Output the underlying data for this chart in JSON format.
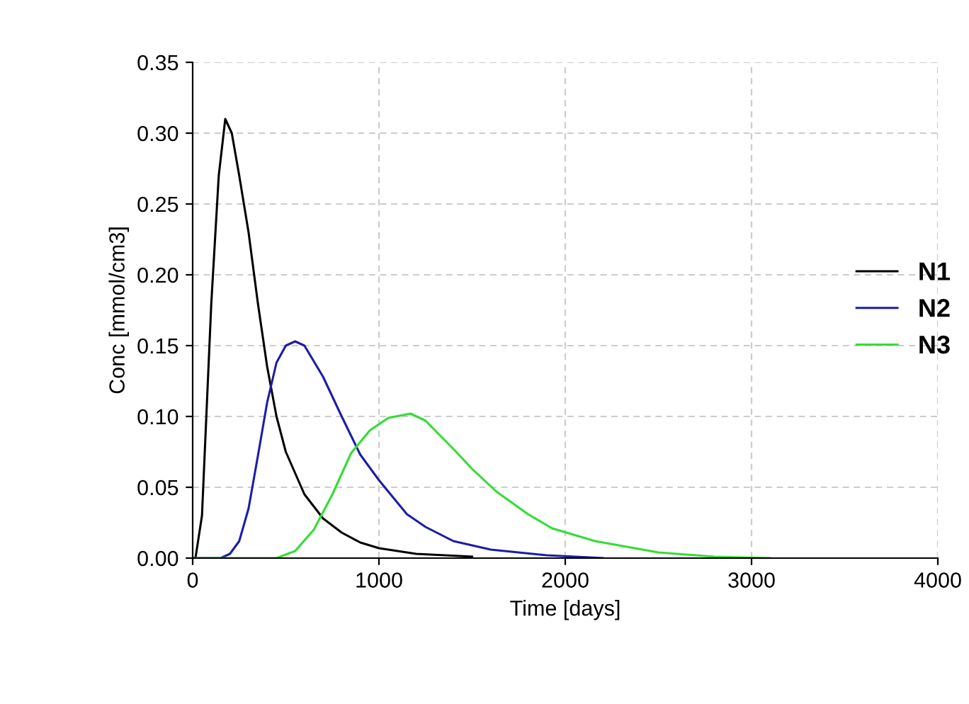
{
  "chart_data": {
    "type": "line",
    "xlabel": "Time [days]",
    "ylabel": "Conc [mmol/cm3]",
    "xlim": [
      0,
      4000
    ],
    "xticks": [
      0,
      1000,
      2000,
      3000,
      4000
    ],
    "ylim": [
      0,
      0.35
    ],
    "yticks": [
      {
        "value": 0,
        "label": "0.00"
      },
      {
        "value": 0.05,
        "label": "0.05"
      },
      {
        "value": 0.1,
        "label": "0.10"
      },
      {
        "value": 0.15,
        "label": "0.15"
      },
      {
        "value": 0.2,
        "label": "0.20"
      },
      {
        "value": 0.25,
        "label": "0.25"
      },
      {
        "value": 0.3,
        "label": "0.30"
      },
      {
        "value": 0.35,
        "label": "0.35"
      }
    ],
    "grid": true,
    "legend": "right",
    "marker": "none",
    "line_style": "solid",
    "series": [
      {
        "name": "N1",
        "color": "#000000",
        "x": [
          0,
          15,
          50,
          100,
          140,
          175,
          210,
          250,
          300,
          350,
          400,
          450,
          500,
          560,
          600,
          700,
          800,
          900,
          1000,
          1200,
          1500
        ],
        "values": [
          0,
          0,
          0.03,
          0.18,
          0.27,
          0.31,
          0.3,
          0.27,
          0.23,
          0.18,
          0.135,
          0.1,
          0.075,
          0.057,
          0.045,
          0.028,
          0.018,
          0.011,
          0.007,
          0.003,
          0.001
        ]
      },
      {
        "name": "N2",
        "color": "#1c1ca8",
        "x": [
          0,
          150,
          200,
          250,
          300,
          350,
          400,
          450,
          500,
          550,
          600,
          700,
          800,
          900,
          1000,
          1150,
          1250,
          1400,
          1600,
          1900,
          2200
        ],
        "values": [
          0,
          0,
          0.003,
          0.012,
          0.035,
          0.072,
          0.11,
          0.138,
          0.15,
          0.153,
          0.15,
          0.128,
          0.1,
          0.073,
          0.055,
          0.031,
          0.022,
          0.012,
          0.006,
          0.002,
          0
        ]
      },
      {
        "name": "N3",
        "color": "#33dd33",
        "x": [
          0,
          450,
          550,
          650,
          750,
          850,
          950,
          1050,
          1170,
          1250,
          1400,
          1500,
          1630,
          1800,
          1930,
          2160,
          2500,
          2800,
          3100
        ],
        "values": [
          0,
          0,
          0.005,
          0.02,
          0.045,
          0.074,
          0.09,
          0.099,
          0.102,
          0.097,
          0.077,
          0.063,
          0.047,
          0.031,
          0.021,
          0.012,
          0.004,
          0.001,
          0
        ]
      }
    ]
  }
}
